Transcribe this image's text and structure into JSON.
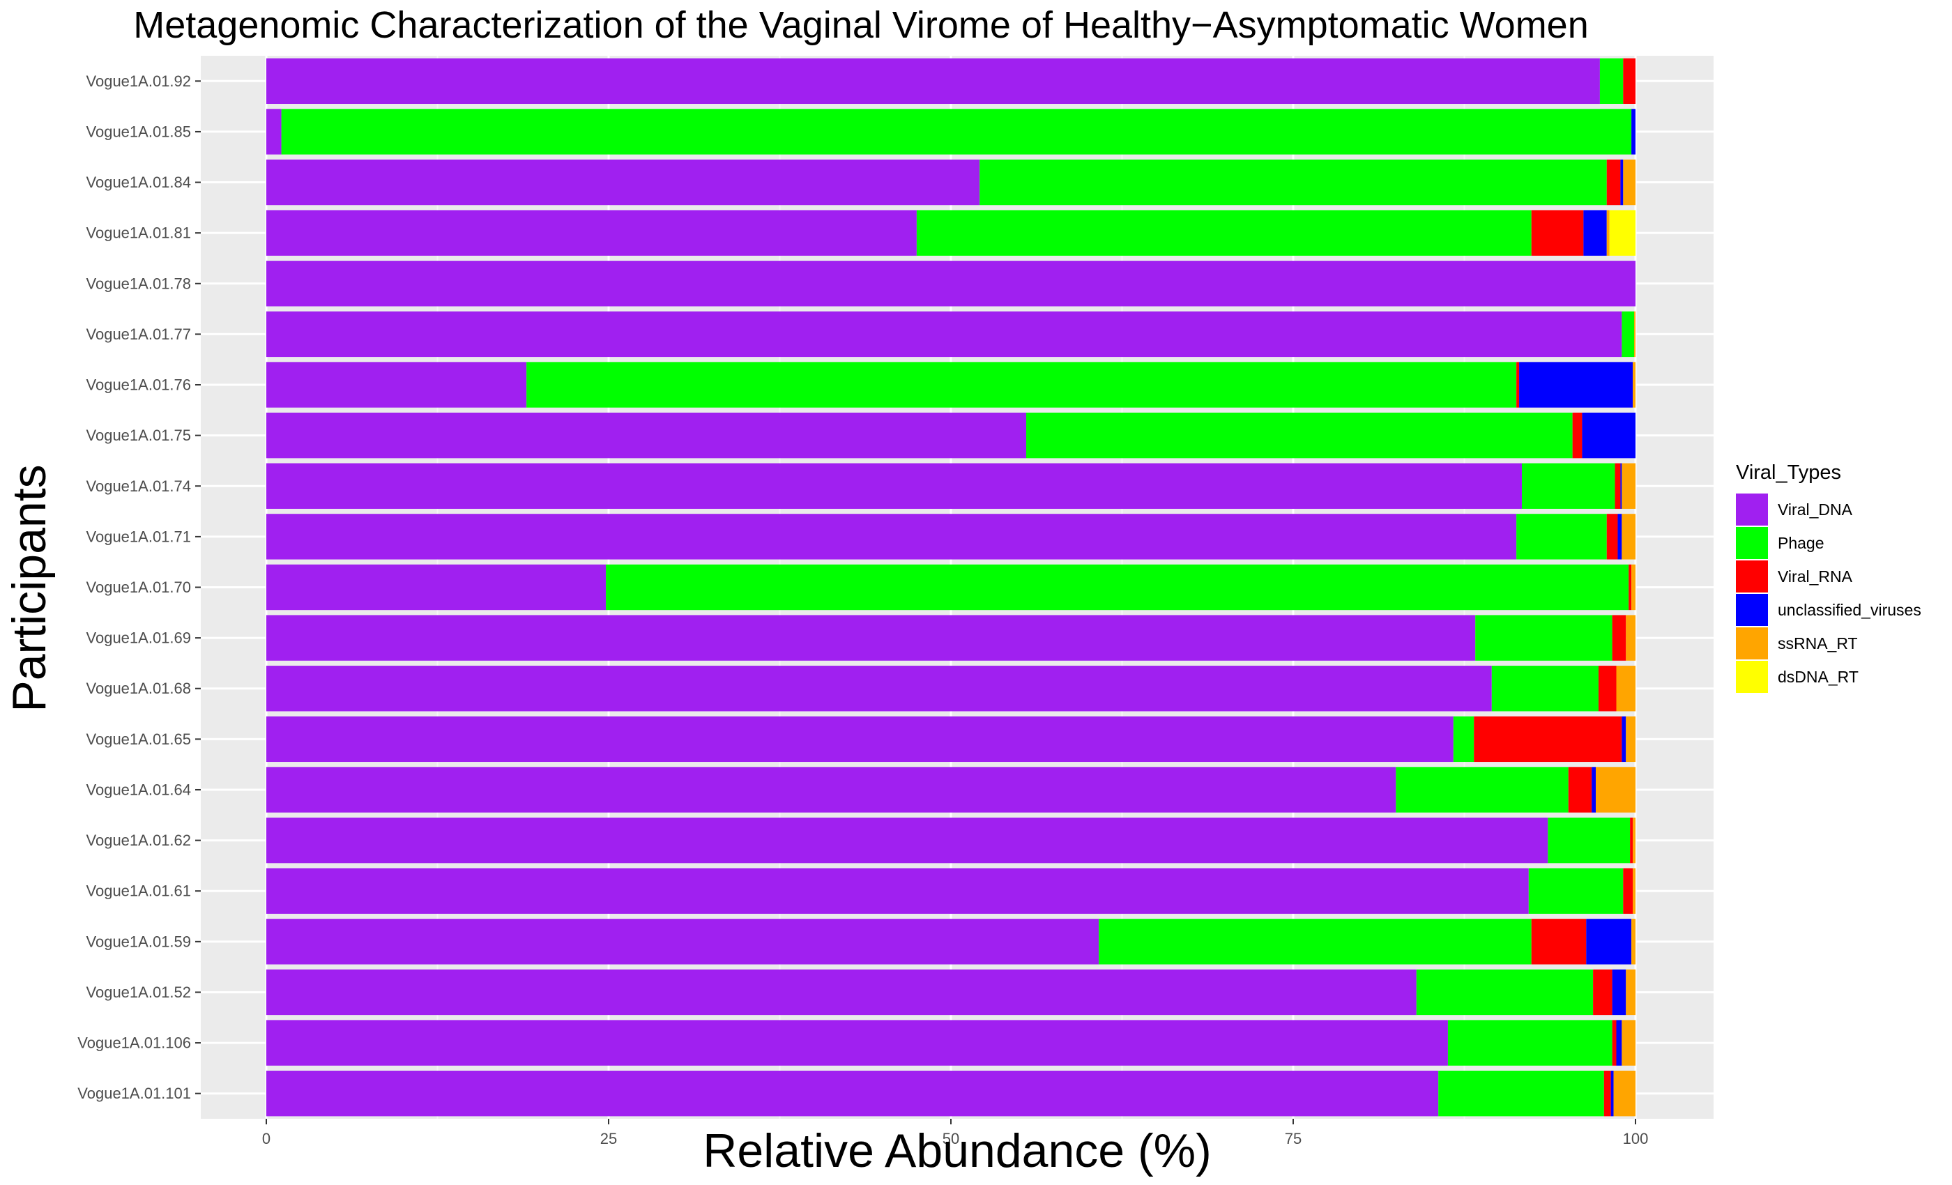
{
  "chart_data": {
    "type": "bar",
    "orientation": "horizontal",
    "stacked": true,
    "title": "Metagenomic Characterization of the Vaginal Virome of Healthy−Asymptomatic Women",
    "xlabel": "Relative Abundance (%)",
    "ylabel": "Participants",
    "xlim": [
      0,
      100
    ],
    "xticks": [
      "0",
      "25",
      "50",
      "75",
      "100"
    ],
    "grid": true,
    "legend": {
      "title": "Viral_Types",
      "position": "right"
    },
    "categories": [
      "Vogue1A.01.92",
      "Vogue1A.01.85",
      "Vogue1A.01.84",
      "Vogue1A.01.81",
      "Vogue1A.01.78",
      "Vogue1A.01.77",
      "Vogue1A.01.76",
      "Vogue1A.01.75",
      "Vogue1A.01.74",
      "Vogue1A.01.71",
      "Vogue1A.01.70",
      "Vogue1A.01.69",
      "Vogue1A.01.68",
      "Vogue1A.01.65",
      "Vogue1A.01.64",
      "Vogue1A.01.62",
      "Vogue1A.01.61",
      "Vogue1A.01.59",
      "Vogue1A.01.52",
      "Vogue1A.01.106",
      "Vogue1A.01.101"
    ],
    "series": [
      {
        "name": "Viral_DNA",
        "color": "#A020F0",
        "values": [
          97.4,
          1.1,
          52.1,
          47.5,
          100,
          99.0,
          19.0,
          55.5,
          91.7,
          91.3,
          24.8,
          88.3,
          89.5,
          86.7,
          82.5,
          93.6,
          92.2,
          60.8,
          84.0,
          86.3,
          85.6
        ]
      },
      {
        "name": "Phage",
        "color": "#00FF00",
        "values": [
          1.7,
          98.6,
          45.8,
          44.9,
          0,
          0.9,
          72.3,
          39.9,
          6.8,
          6.6,
          74.7,
          10.0,
          7.8,
          1.5,
          12.6,
          6.0,
          6.9,
          31.6,
          12.9,
          12.0,
          12.1
        ]
      },
      {
        "name": "Viral_RNA",
        "color": "#FF0000",
        "values": [
          0.9,
          0,
          1.0,
          3.8,
          0,
          0,
          0.2,
          0.7,
          0.4,
          0.8,
          0.2,
          1.0,
          1.3,
          10.8,
          1.7,
          0.2,
          0.7,
          4.0,
          1.4,
          0.3,
          0.5
        ]
      },
      {
        "name": "unclassified_viruses",
        "color": "#0000FF",
        "values": [
          0,
          0.3,
          0.2,
          1.7,
          0,
          0,
          8.3,
          3.9,
          0.1,
          0.3,
          0,
          0,
          0,
          0.3,
          0.3,
          0,
          0,
          3.3,
          1.0,
          0.4,
          0.2
        ]
      },
      {
        "name": "ssRNA_RT",
        "color": "#FFA500",
        "values": [
          0,
          0,
          0.9,
          0.2,
          0,
          0.1,
          0.2,
          0,
          1.0,
          1.0,
          0.3,
          0.7,
          1.4,
          0.7,
          2.9,
          0.2,
          0.2,
          0.3,
          0.7,
          1.0,
          1.6
        ]
      },
      {
        "name": "dsDNA_RT",
        "color": "#FFFF00",
        "values": [
          0,
          0,
          0,
          1.9,
          0,
          0,
          0,
          0,
          0,
          0,
          0,
          0,
          0,
          0,
          0,
          0,
          0,
          0,
          0,
          0,
          0
        ]
      }
    ]
  },
  "colors": {
    "panel_background": "#EBEBEB",
    "grid_major": "#FFFFFF",
    "grid_minor": "#F5F5F5",
    "tick_text": "#4D4D4D"
  }
}
